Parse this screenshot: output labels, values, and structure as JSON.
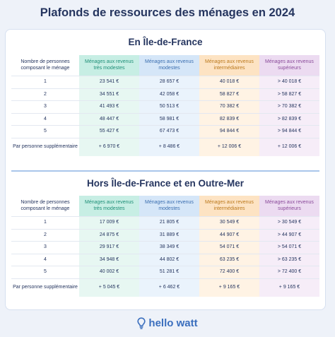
{
  "title": "Plafonds de ressources des ménages en 2024",
  "headers": [
    "Nombre de personnes composant le ménage",
    "Ménages aux revenus très modestes",
    "Ménages aux revenus modestes",
    "Ménages aux revenus intermédiaires",
    "Ménages aux revenus supérieurs"
  ],
  "sections": [
    {
      "title": "En Île-de-France",
      "rows": [
        [
          "1",
          "23 541 €",
          "28 657 €",
          "40 018 €",
          "> 40 018 €"
        ],
        [
          "2",
          "34 551 €",
          "42 058 €",
          "58 827 €",
          "> 58 827 €"
        ],
        [
          "3",
          "41 493 €",
          "50 513 €",
          "70 382 €",
          "> 70 382 €"
        ],
        [
          "4",
          "48 447 €",
          "58 981 €",
          "82 839 €",
          "> 82 839 €"
        ],
        [
          "5",
          "55 427 €",
          "67 473 €",
          "94 844 €",
          "> 94 844 €"
        ],
        [
          "Par personne supplémentaire",
          "+ 6 970 €",
          "+ 8 486 €",
          "+ 12 006 €",
          "+ 12 006 €"
        ]
      ]
    },
    {
      "title": "Hors Île-de-France et en Outre-Mer",
      "rows": [
        [
          "1",
          "17 009 €",
          "21 805 €",
          "30 549 €",
          "> 30 549 €"
        ],
        [
          "2",
          "24 875 €",
          "31 889 €",
          "44 907 €",
          "> 44 907 €"
        ],
        [
          "3",
          "29 917 €",
          "38 349 €",
          "54 071 €",
          "> 54 071 €"
        ],
        [
          "4",
          "34 948 €",
          "44 802 €",
          "63 235 €",
          "> 63 235 €"
        ],
        [
          "5",
          "40 002 €",
          "51 281 €",
          "72 400 €",
          "> 72 400 €"
        ],
        [
          "Par personne supplémentaire",
          "+ 5 045 €",
          "+ 6 462 €",
          "+ 9 165 €",
          "+ 9 165 €"
        ]
      ]
    }
  ],
  "brand": {
    "name": "hello watt",
    "icon": "lightbulb-icon",
    "color": "#3b6fbe"
  },
  "colors": {
    "very_modest": "#c7eee4",
    "modest": "#d5e6f8",
    "intermediate": "#fde3c3",
    "superior": "#ecdbf1",
    "title_text": "#25355f"
  }
}
